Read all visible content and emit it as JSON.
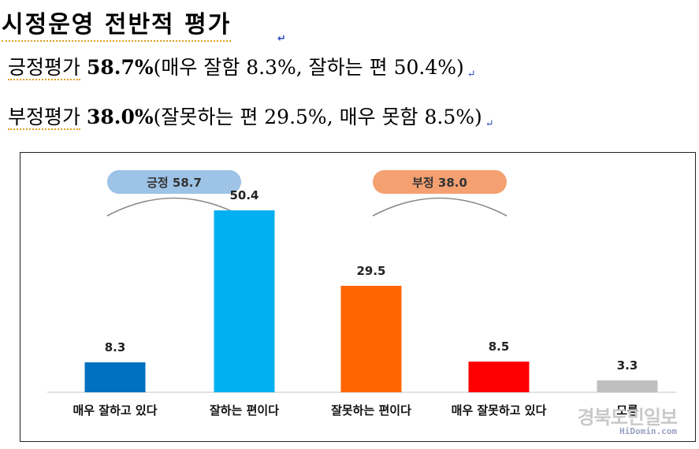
{
  "header": {
    "title": "시정운영 전반적 평가",
    "positive": {
      "label": "긍정평가",
      "value": "58.7%",
      "detail": "(매우 잘함 8.3%, 잘하는 편 50.4%)"
    },
    "negative": {
      "label": "부정평가",
      "value": "38.0%",
      "detail": "(잘못하는 편 29.5%, 매우 못함 8.5%)"
    },
    "return_mark": "↵"
  },
  "groups": [
    {
      "label": "긍정 58.7",
      "color": "#9dc3e6"
    },
    {
      "label": "부정 38.0",
      "color": "#f4a071"
    }
  ],
  "chart_data": {
    "type": "bar",
    "categories": [
      "매우 잘하고 있다",
      "잘하는 편이다",
      "잘못하는 편이다",
      "매우 잘못하고 있다",
      "모름"
    ],
    "values": [
      8.3,
      50.4,
      29.5,
      8.5,
      3.3
    ],
    "value_labels": [
      "8.3",
      "50.4",
      "29.5",
      "8.5",
      "3.3"
    ],
    "colors": [
      "#0070c0",
      "#00b0f0",
      "#ff6600",
      "#ff0000",
      "#bfbfbf"
    ],
    "ylim": [
      0,
      55
    ],
    "title": "",
    "xlabel": "",
    "ylabel": "",
    "grid": false
  },
  "watermark": {
    "main": "경북도민일보",
    "sub": "HiDomin.com"
  }
}
